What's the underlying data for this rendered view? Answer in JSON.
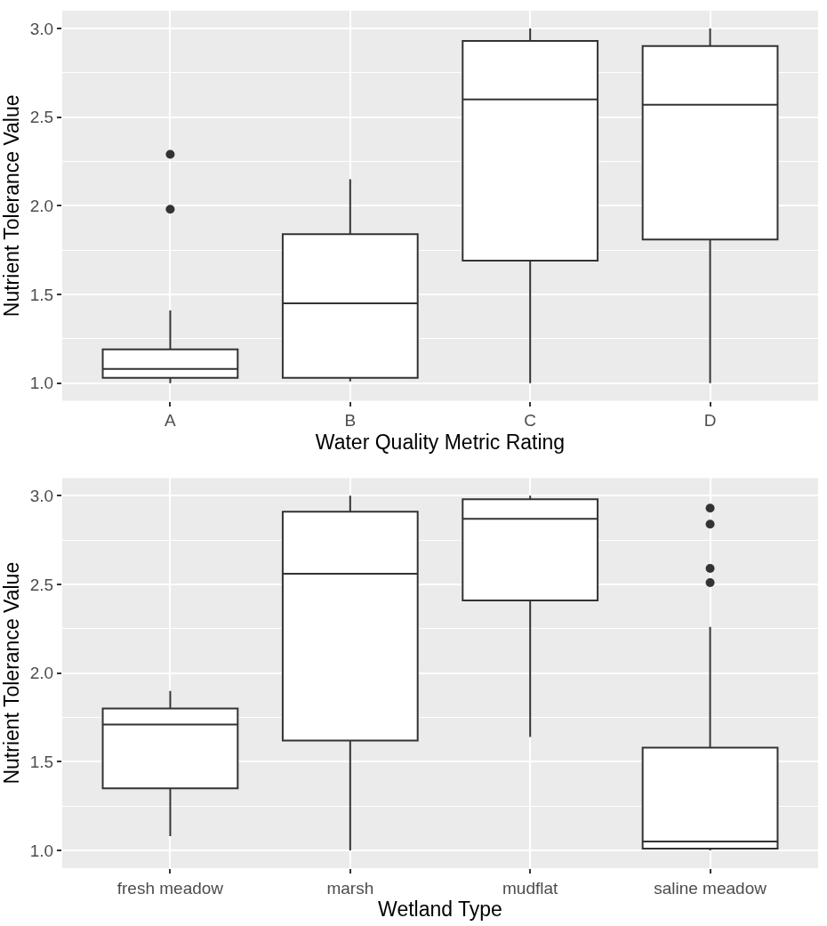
{
  "chart_data": [
    {
      "type": "box",
      "xlabel": "Water Quality Metric Rating",
      "ylabel": "Nutrient Tolerance Value",
      "categories": [
        "A",
        "B",
        "C",
        "D"
      ],
      "boxes": [
        {
          "low": 1.0,
          "q1": 1.03,
          "median": 1.08,
          "q3": 1.19,
          "high": 1.41,
          "outliers": [
            2.29,
            1.98
          ]
        },
        {
          "low": 1.01,
          "q1": 1.03,
          "median": 1.45,
          "q3": 1.84,
          "high": 2.15
        },
        {
          "low": 1.0,
          "q1": 1.69,
          "median": 2.6,
          "q3": 2.93,
          "high": 3.0
        },
        {
          "low": 1.0,
          "q1": 1.81,
          "median": 2.57,
          "q3": 2.9,
          "high": 3.0
        }
      ],
      "ylim": [
        0.9,
        3.1
      ],
      "yticks": [
        {
          "value": 1,
          "label": "1.0"
        },
        {
          "value": 1.5,
          "label": "1.5"
        },
        {
          "value": 2,
          "label": "2.0"
        },
        {
          "value": 2.5,
          "label": "2.5"
        },
        {
          "value": 3,
          "label": "3.0"
        }
      ],
      "grid": true
    },
    {
      "type": "box",
      "xlabel": "Wetland Type",
      "ylabel": "Nutrient Tolerance Value",
      "categories": [
        "fresh meadow",
        "marsh",
        "mudflat",
        "saline meadow"
      ],
      "boxes": [
        {
          "low": 1.08,
          "q1": 1.35,
          "median": 1.71,
          "q3": 1.8,
          "high": 1.9
        },
        {
          "low": 1.0,
          "q1": 1.62,
          "median": 2.56,
          "q3": 2.91,
          "high": 3.0
        },
        {
          "low": 1.64,
          "q1": 2.41,
          "median": 2.87,
          "q3": 2.98,
          "high": 3.0
        },
        {
          "low": 1.0,
          "q1": 1.01,
          "median": 1.05,
          "q3": 1.58,
          "high": 2.26,
          "outliers": [
            2.93,
            2.84,
            2.59,
            2.51
          ]
        }
      ],
      "ylim": [
        0.9,
        3.1
      ],
      "yticks": [
        {
          "value": 1,
          "label": "1.0"
        },
        {
          "value": 1.5,
          "label": "1.5"
        },
        {
          "value": 2,
          "label": "2.0"
        },
        {
          "value": 2.5,
          "label": "2.5"
        },
        {
          "value": 3,
          "label": "3.0"
        }
      ],
      "grid": true
    }
  ]
}
